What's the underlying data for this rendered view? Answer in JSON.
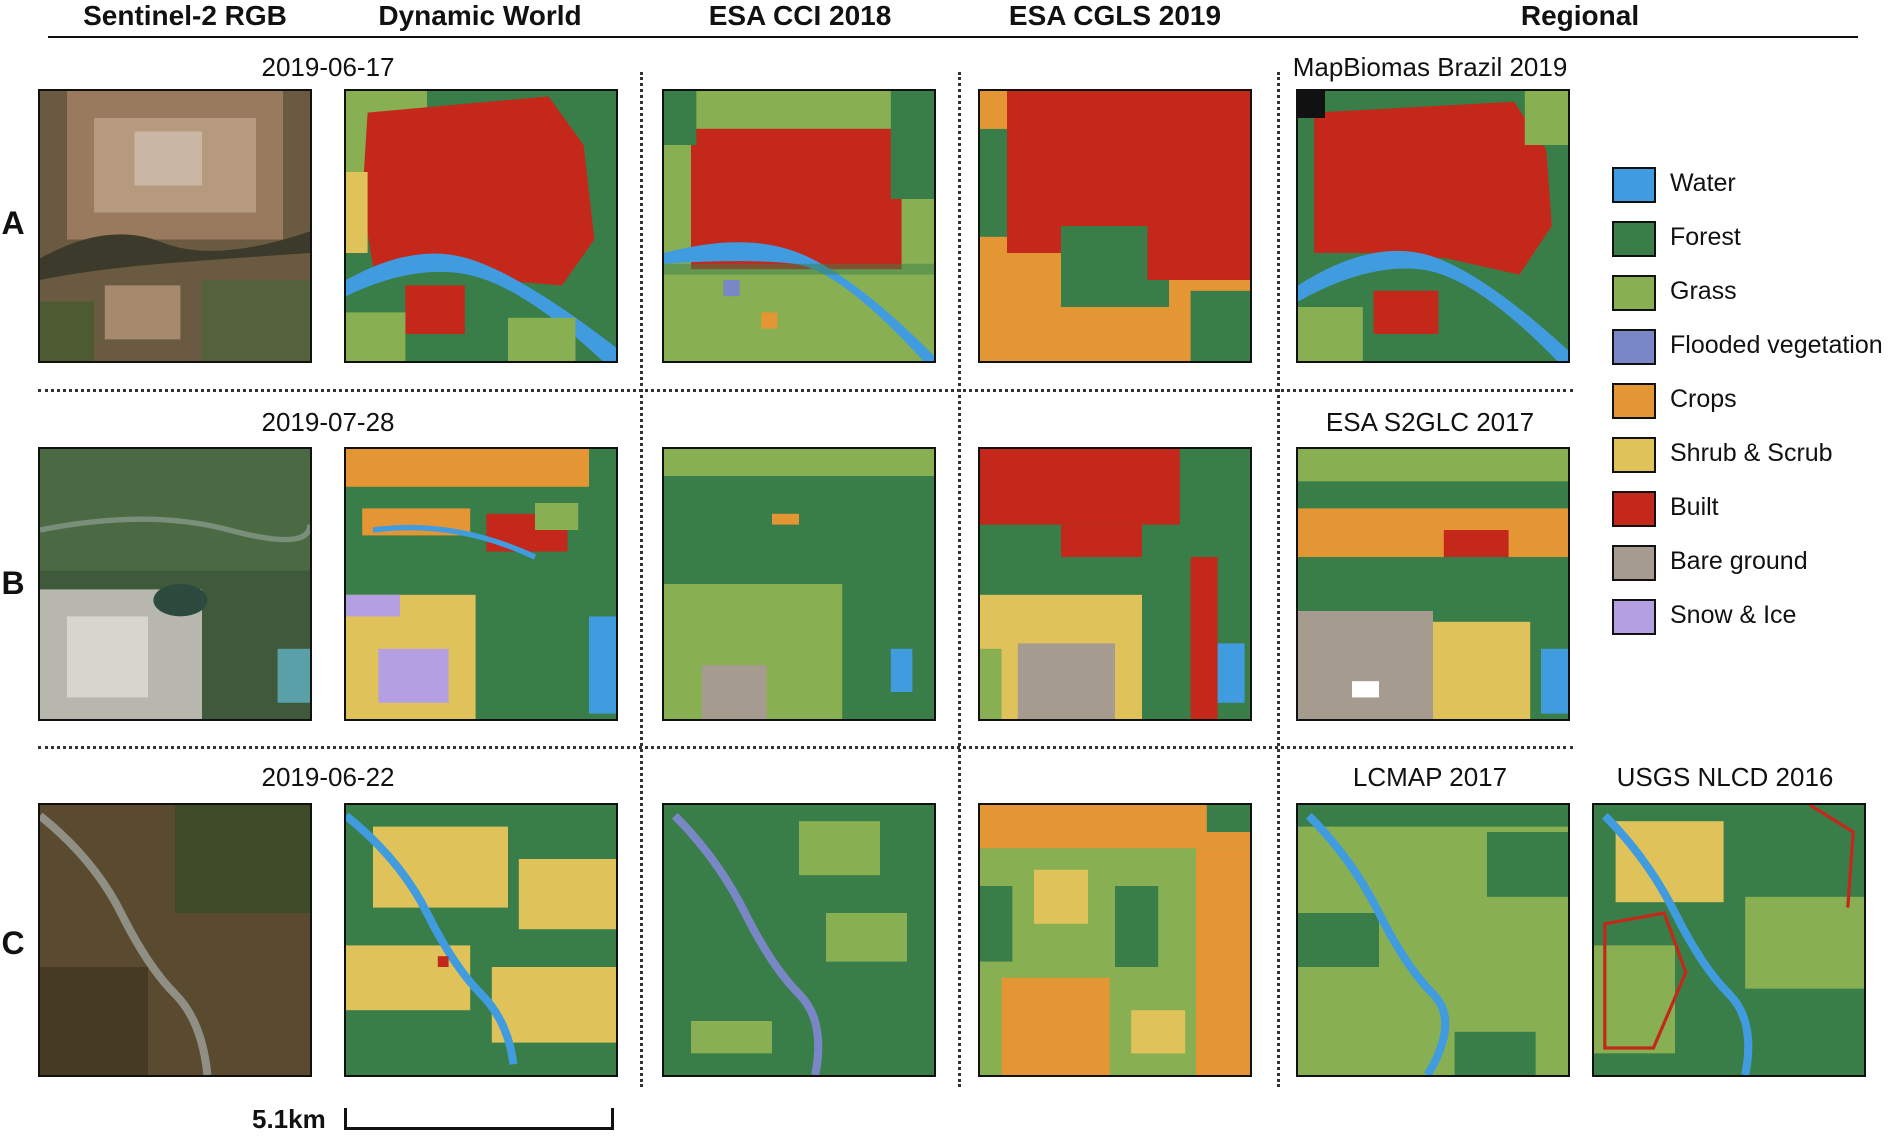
{
  "columns": {
    "sentinel": "Sentinel-2 RGB",
    "dynamic_world": "Dynamic World",
    "esa_cci": "ESA CCI 2018",
    "esa_cgls": "ESA CGLS 2019",
    "regional": "Regional"
  },
  "rows": [
    {
      "label": "A",
      "date": "2019-06-17",
      "regional_maps": [
        "MapBiomas Brazil 2019"
      ]
    },
    {
      "label": "B",
      "date": "2019-07-28",
      "regional_maps": [
        "ESA S2GLC 2017"
      ]
    },
    {
      "label": "C",
      "date": "2019-06-22",
      "regional_maps": [
        "LCMAP 2017",
        "USGS NLCD 2016"
      ]
    }
  ],
  "legend": [
    {
      "label": "Water",
      "color": "#419bdf"
    },
    {
      "label": "Forest",
      "color": "#397d49"
    },
    {
      "label": "Grass",
      "color": "#88b053"
    },
    {
      "label": "Flooded vegetation",
      "color": "#7a87c6"
    },
    {
      "label": "Crops",
      "color": "#e49635"
    },
    {
      "label": "Shrub & Scrub",
      "color": "#dfc35a"
    },
    {
      "label": "Built",
      "color": "#c4281b"
    },
    {
      "label": "Bare ground",
      "color": "#a59b8f"
    },
    {
      "label": "Snow & Ice",
      "color": "#b39fe1"
    }
  ],
  "scale_bar": {
    "label": "5.1km"
  }
}
